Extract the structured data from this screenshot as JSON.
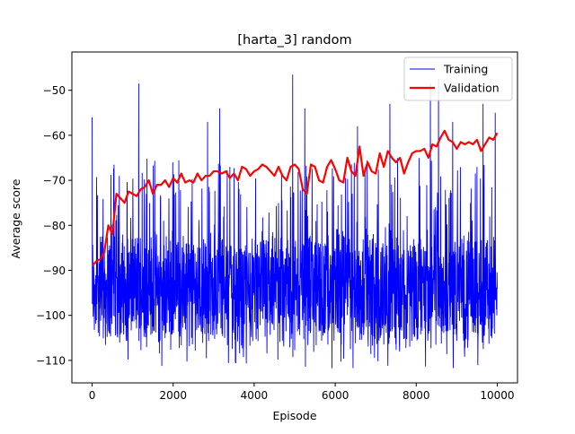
{
  "chart_data": {
    "type": "line",
    "title": "[harta_3] random",
    "xlabel": "Episode",
    "ylabel": "Average score",
    "xlim": [
      -500,
      10500
    ],
    "ylim": [
      -115,
      -41.5
    ],
    "xticks": [
      0,
      2000,
      4000,
      6000,
      8000,
      10000
    ],
    "xtick_labels": [
      "0",
      "2000",
      "4000",
      "6000",
      "8000",
      "10000"
    ],
    "yticks": [
      -110,
      -100,
      -90,
      -80,
      -70,
      -60,
      -50
    ],
    "ytick_labels": [
      "−110",
      "−100",
      "−90",
      "−80",
      "−70",
      "−60",
      "−50"
    ],
    "grid": false,
    "legend_position": "top-right",
    "series": [
      {
        "name": "Training",
        "color": "#0000ff",
        "x_range": [
          0,
          10000
        ],
        "approximate_band": {
          "low": -105,
          "high": -83
        },
        "min_value": -112,
        "max_value": -46.5,
        "peaks": [
          {
            "x": 1150,
            "y": -48.5
          },
          {
            "x": 4950,
            "y": -46.5
          },
          {
            "x": 8350,
            "y": -48.5
          },
          {
            "x": 8550,
            "y": -47.5
          },
          {
            "x": 0,
            "y": -56
          },
          {
            "x": 3150,
            "y": -54
          },
          {
            "x": 5250,
            "y": -54
          },
          {
            "x": 7350,
            "y": -53
          },
          {
            "x": 9650,
            "y": -53
          },
          {
            "x": 2850,
            "y": -57
          },
          {
            "x": 6550,
            "y": -58
          },
          {
            "x": 8900,
            "y": -57
          },
          {
            "x": 9950,
            "y": -55
          }
        ]
      },
      {
        "name": "Validation",
        "color": "#ff0000",
        "x": [
          0,
          100,
          200,
          300,
          400,
          500,
          600,
          700,
          800,
          900,
          1000,
          1100,
          1200,
          1300,
          1400,
          1500,
          1600,
          1700,
          1800,
          1900,
          2000,
          2100,
          2200,
          2300,
          2400,
          2500,
          2600,
          2700,
          2800,
          2900,
          3000,
          3100,
          3200,
          3300,
          3400,
          3500,
          3600,
          3700,
          3800,
          3900,
          4000,
          4100,
          4200,
          4300,
          4400,
          4500,
          4600,
          4700,
          4800,
          4900,
          5000,
          5100,
          5200,
          5300,
          5400,
          5500,
          5600,
          5700,
          5800,
          5900,
          6000,
          6100,
          6200,
          6300,
          6400,
          6500,
          6600,
          6700,
          6800,
          6900,
          7000,
          7100,
          7200,
          7300,
          7400,
          7500,
          7600,
          7700,
          7800,
          7900,
          8000,
          8100,
          8200,
          8300,
          8400,
          8500,
          8600,
          8700,
          8800,
          8900,
          9000,
          9100,
          9200,
          9300,
          9400,
          9500,
          9600,
          9700,
          9800,
          9900,
          10000
        ],
        "values": [
          -89,
          -88,
          -87.5,
          -86,
          -80,
          -82,
          -73,
          -74,
          -75,
          -72.5,
          -73,
          -73.5,
          -72,
          -71.5,
          -70,
          -73,
          -71,
          -71,
          -70,
          -71.5,
          -69.5,
          -70.5,
          -68.5,
          -70.5,
          -70,
          -70.5,
          -68.5,
          -70,
          -69,
          -69,
          -68,
          -68,
          -68.5,
          -68,
          -69.5,
          -68.5,
          -70,
          -67,
          -67.5,
          -69,
          -68,
          -67.5,
          -66.5,
          -67,
          -68,
          -69,
          -67,
          -69,
          -70,
          -67,
          -66.5,
          -67.5,
          -72,
          -73,
          -66.5,
          -67,
          -70,
          -70.5,
          -67,
          -65.5,
          -67.5,
          -70,
          -70.5,
          -65,
          -68,
          -69,
          -62.5,
          -69,
          -66,
          -68,
          -68.5,
          -64,
          -67,
          -63.5,
          -65,
          -66,
          -65,
          -68.5,
          -66,
          -64,
          -63.5,
          -63.5,
          -63,
          -65,
          -62,
          -62.5,
          -60.5,
          -59,
          -61,
          -61.5,
          -63,
          -61.5,
          -62,
          -61.5,
          -62,
          -61,
          -63.5,
          -62,
          -60.5,
          -61,
          -59.5
        ]
      }
    ]
  }
}
